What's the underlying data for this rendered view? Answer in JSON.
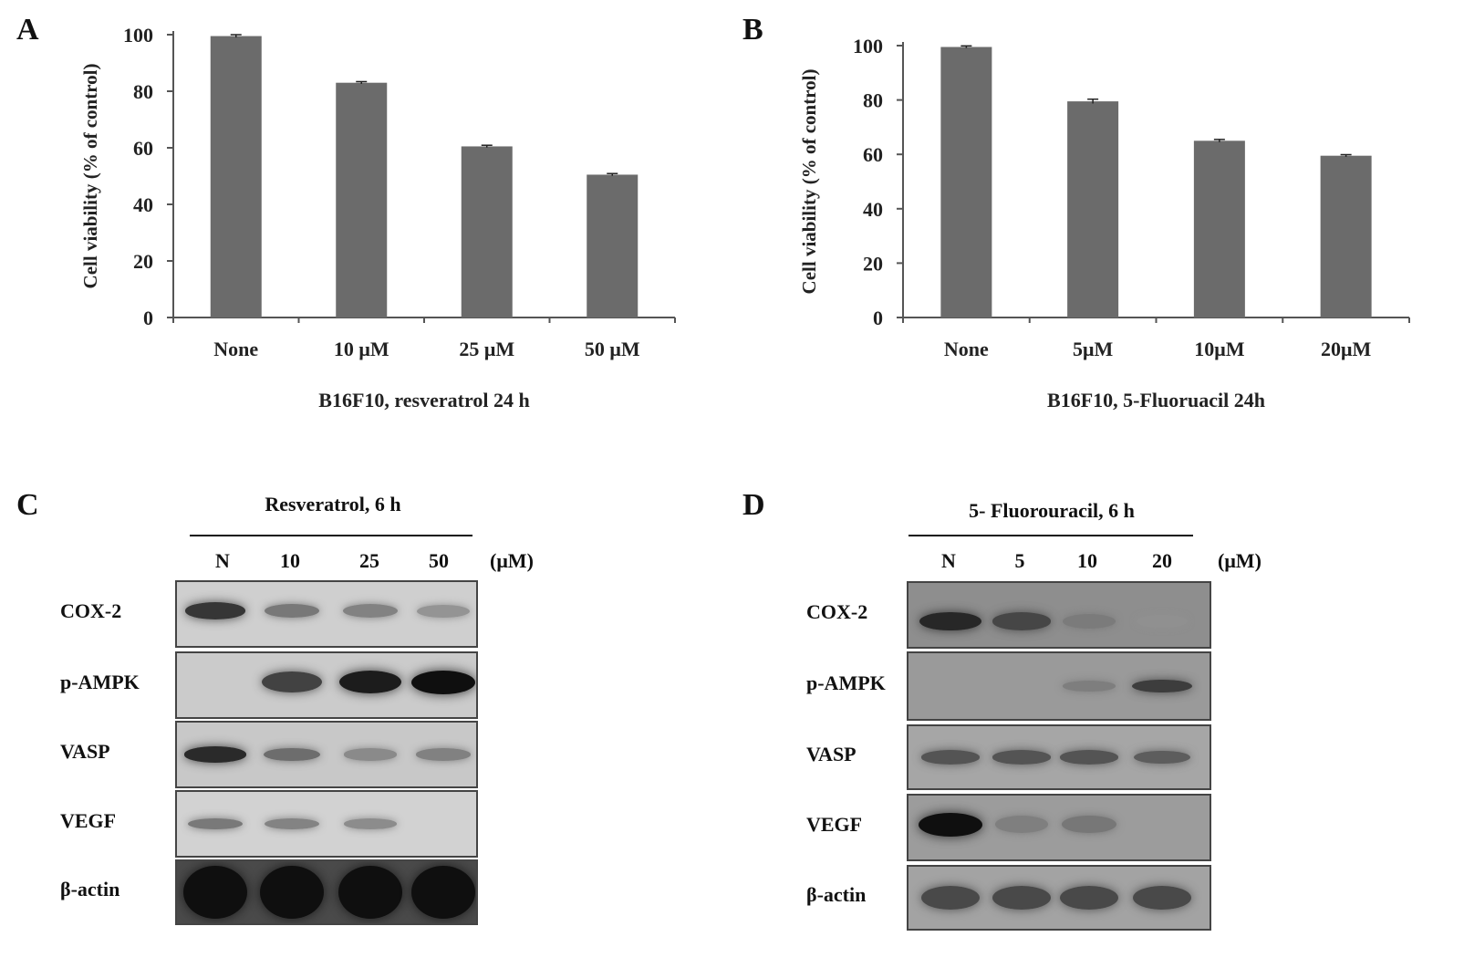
{
  "panels": {
    "a": {
      "letter": "A"
    },
    "b": {
      "letter": "B"
    },
    "c": {
      "letter": "C",
      "title": "Resveratrol, 6 h",
      "lanes": [
        "N",
        "10",
        "25",
        "50"
      ],
      "unit": "(μM)",
      "rows": [
        "COX-2",
        "p-AMPK",
        "VASP",
        "VEGF",
        "β-actin"
      ]
    },
    "d": {
      "letter": "D",
      "title": "5- Fluorouracil, 6 h",
      "lanes": [
        "N",
        "5",
        "10",
        "20"
      ],
      "unit": "(μM)",
      "rows": [
        "COX-2",
        "p-AMPK",
        "VASP",
        "VEGF",
        "β-actin"
      ]
    }
  },
  "chart_data": [
    {
      "type": "bar",
      "categories": [
        "None",
        "10 μM",
        "25 μM",
        "50 μM"
      ],
      "values": [
        99.5,
        83,
        60.5,
        50.5
      ],
      "errors": [
        0.5,
        0.4,
        0.4,
        0.4
      ],
      "ylabel": "Cell viability (% of control)",
      "xlabel": "B16F10,  resveratrol  24 h",
      "ylim": [
        0,
        100
      ],
      "yticks": [
        0,
        20,
        40,
        60,
        80,
        100
      ],
      "bar_color": "#6b6b6b"
    },
    {
      "type": "bar",
      "categories": [
        "None",
        "5μM",
        "10μM",
        "20μM"
      ],
      "values": [
        99.5,
        79.5,
        65,
        59.5
      ],
      "errors": [
        0.4,
        0.8,
        0.5,
        0.4
      ],
      "ylabel": "Cell viability (% of control)",
      "xlabel": "B16F10, 5-Fluoruacil 24h",
      "ylim": [
        0,
        100
      ],
      "yticks": [
        0,
        20,
        40,
        60,
        80,
        100
      ],
      "bar_color": "#6b6b6b"
    }
  ],
  "blot_intensities": {
    "c": {
      "COX-2": [
        0.85,
        0.55,
        0.5,
        0.4
      ],
      "p-AMPK": [
        0.0,
        0.8,
        0.95,
        1.0
      ],
      "VASP": [
        0.9,
        0.6,
        0.45,
        0.5
      ],
      "VEGF": [
        0.55,
        0.5,
        0.45,
        0.0
      ],
      "β-actin": [
        1.0,
        1.0,
        1.0,
        1.0
      ]
    },
    "d": {
      "COX-2": [
        0.9,
        0.75,
        0.45,
        0.3
      ],
      "p-AMPK": [
        0.0,
        0.0,
        0.45,
        0.8
      ],
      "VASP": [
        0.7,
        0.7,
        0.7,
        0.65
      ],
      "VEGF": [
        1.0,
        0.45,
        0.5,
        0.0
      ],
      "β-actin": [
        0.75,
        0.75,
        0.75,
        0.75
      ]
    }
  }
}
